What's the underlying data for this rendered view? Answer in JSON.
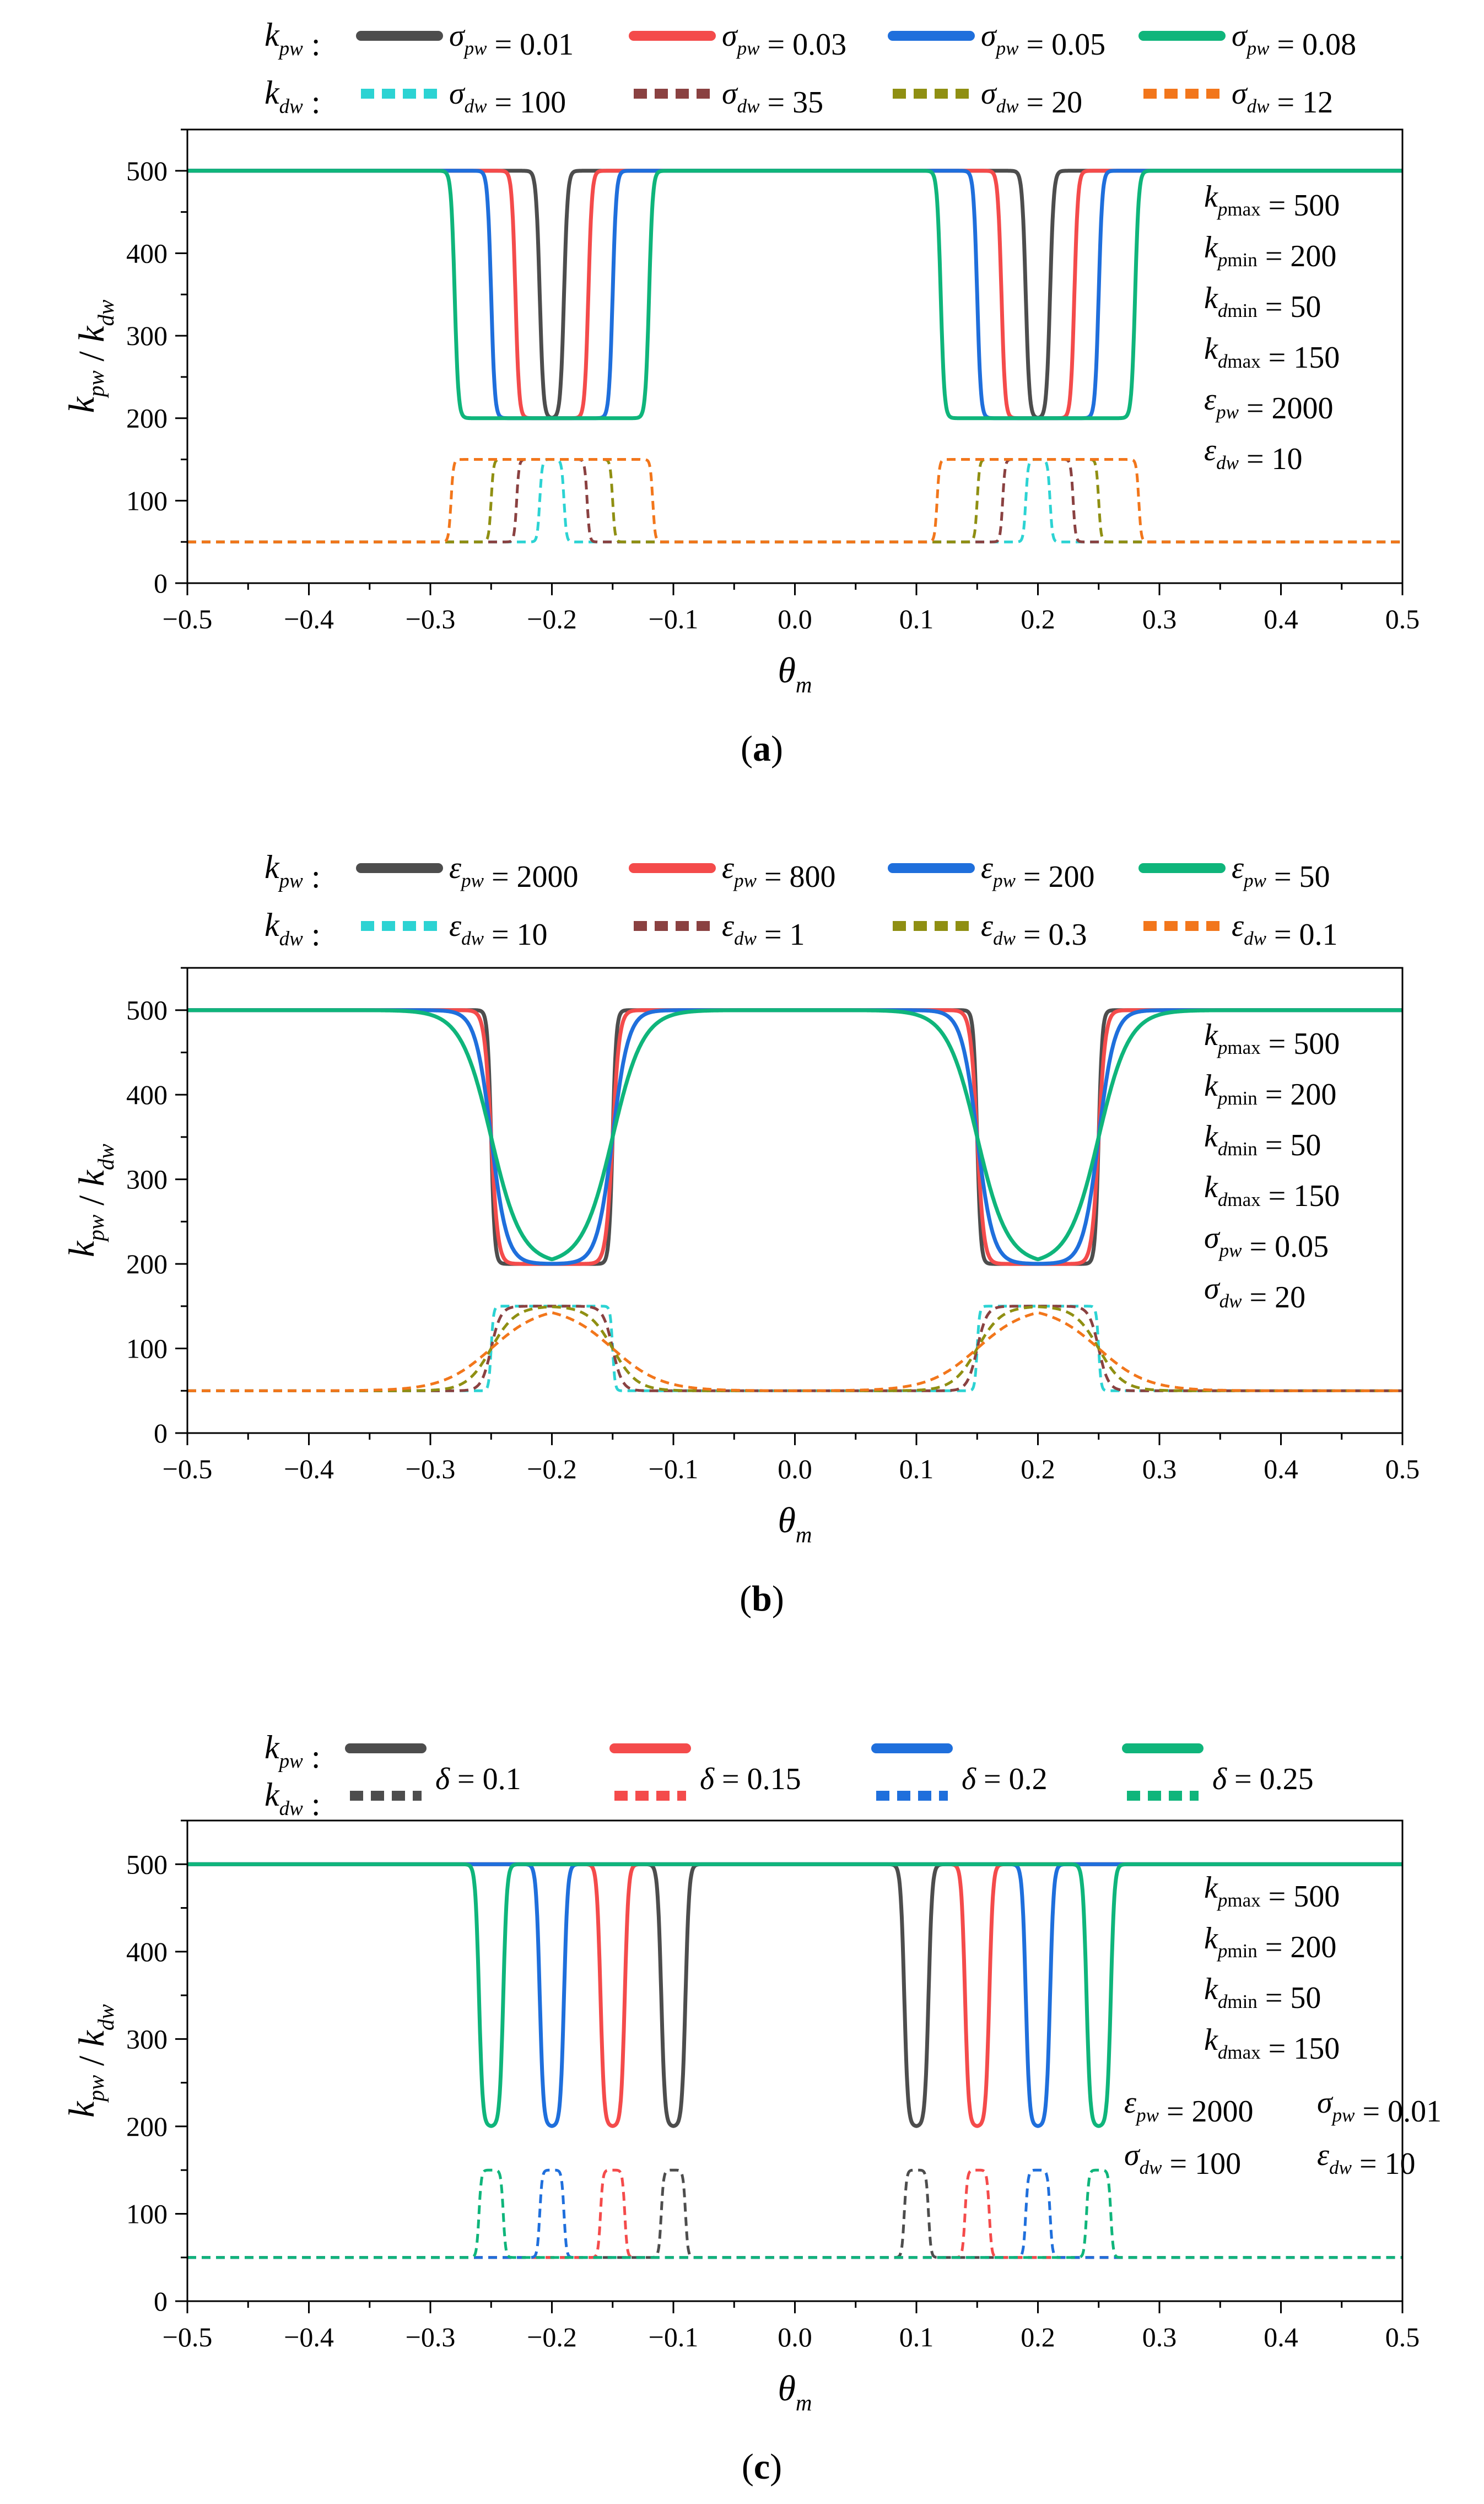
{
  "colors": {
    "black": "#4d4d4d",
    "red": "#f44b4b",
    "blue": "#1f6fdc",
    "green": "#0fb57b",
    "cyan": "#2cd3d3",
    "brown": "#8a4141",
    "olive": "#8f8f12",
    "orange": "#f2761b"
  },
  "chart_data": [
    {
      "type": "line",
      "panel_label": "(a)",
      "xlabel": "θm",
      "ylabel": "kpw / kdw",
      "xlim": [
        -0.5,
        0.5
      ],
      "ylim": [
        0,
        550
      ],
      "xticks": [
        "−0.5",
        "−0.4",
        "−0.3",
        "−0.2",
        "−0.1",
        "0.0",
        "0.1",
        "0.2",
        "0.3",
        "0.4",
        "0.5"
      ],
      "yticks": [
        "0",
        "100",
        "200",
        "300",
        "400",
        "500"
      ],
      "legend": {
        "row1_label": "kpw :",
        "row2_label": "kdw :",
        "row1": [
          "σpw = 0.01",
          "σpw = 0.03",
          "σpw = 0.05",
          "σpw = 0.08"
        ],
        "row2": [
          "σdw = 100",
          "σdw = 35",
          "σdw = 20",
          "σdw = 12"
        ]
      },
      "params": [
        "kpmax = 500",
        "kpmin = 200",
        "kdmin = 50",
        "kdmax = 150",
        "εpw = 2000",
        "εdw = 10"
      ],
      "series": [
        {
          "name": "σpw = 0.01",
          "kind": "kpw",
          "style": "solid",
          "color": "black",
          "centers": [
            -0.2,
            0.2
          ],
          "half_width": 0.01,
          "base": 500,
          "dip": 200,
          "edge": 0.0015
        },
        {
          "name": "σpw = 0.03",
          "kind": "kpw",
          "style": "solid",
          "color": "red",
          "centers": [
            -0.2,
            0.2
          ],
          "half_width": 0.03,
          "base": 500,
          "dip": 200,
          "edge": 0.0015
        },
        {
          "name": "σpw = 0.05",
          "kind": "kpw",
          "style": "solid",
          "color": "blue",
          "centers": [
            -0.2,
            0.2
          ],
          "half_width": 0.05,
          "base": 500,
          "dip": 200,
          "edge": 0.0015
        },
        {
          "name": "σpw = 0.08",
          "kind": "kpw",
          "style": "solid",
          "color": "green",
          "centers": [
            -0.2,
            0.2
          ],
          "half_width": 0.08,
          "base": 500,
          "dip": 200,
          "edge": 0.0015
        },
        {
          "name": "σdw = 100",
          "kind": "kdw",
          "style": "dashed",
          "color": "cyan",
          "centers": [
            -0.2,
            0.2
          ],
          "half_width": 0.01,
          "base": 50,
          "peak": 150,
          "edge": 0.001
        },
        {
          "name": "σdw = 35",
          "kind": "kdw",
          "style": "dashed",
          "color": "brown",
          "centers": [
            -0.2,
            0.2
          ],
          "half_width": 0.029,
          "base": 50,
          "peak": 150,
          "edge": 0.001
        },
        {
          "name": "σdw = 20",
          "kind": "kdw",
          "style": "dashed",
          "color": "olive",
          "centers": [
            -0.2,
            0.2
          ],
          "half_width": 0.05,
          "base": 50,
          "peak": 150,
          "edge": 0.001
        },
        {
          "name": "σdw = 12",
          "kind": "kdw",
          "style": "dashed",
          "color": "orange",
          "centers": [
            -0.2,
            0.2
          ],
          "half_width": 0.083,
          "base": 50,
          "peak": 150,
          "edge": 0.001
        }
      ]
    },
    {
      "type": "line",
      "panel_label": "(b)",
      "xlabel": "θm",
      "ylabel": "kpw / kdw",
      "xlim": [
        -0.5,
        0.5
      ],
      "ylim": [
        0,
        550
      ],
      "xticks": [
        "−0.5",
        "−0.4",
        "−0.3",
        "−0.2",
        "−0.1",
        "0.0",
        "0.1",
        "0.2",
        "0.3",
        "0.4",
        "0.5"
      ],
      "yticks": [
        "0",
        "100",
        "200",
        "300",
        "400",
        "500"
      ],
      "legend": {
        "row1_label": "kpw :",
        "row2_label": "kdw :",
        "row1": [
          "εpw = 2000",
          "εpw = 800",
          "εpw = 200",
          "εpw = 50"
        ],
        "row2": [
          "εdw = 10",
          "εdw = 1",
          "εdw = 0.3",
          "εdw = 0.1"
        ]
      },
      "params": [
        "kpmax = 500",
        "kpmin = 200",
        "kdmin = 50",
        "kdmax = 150",
        "σpw = 0.05",
        "σdw = 20"
      ],
      "series": [
        {
          "name": "εpw = 2000",
          "kind": "kpw",
          "style": "solid",
          "color": "black",
          "centers": [
            -0.2,
            0.2
          ],
          "half_width": 0.05,
          "base": 500,
          "dip": 200,
          "edge": 0.0015
        },
        {
          "name": "εpw = 800",
          "kind": "kpw",
          "style": "solid",
          "color": "red",
          "centers": [
            -0.2,
            0.2
          ],
          "half_width": 0.05,
          "base": 500,
          "dip": 200,
          "edge": 0.0028
        },
        {
          "name": "εpw = 200",
          "kind": "kpw",
          "style": "solid",
          "color": "blue",
          "centers": [
            -0.2,
            0.2
          ],
          "half_width": 0.05,
          "base": 500,
          "dip": 200,
          "edge": 0.0065
        },
        {
          "name": "εpw = 50",
          "kind": "kpw",
          "style": "solid",
          "color": "green",
          "centers": [
            -0.2,
            0.2
          ],
          "half_width": 0.05,
          "base": 500,
          "dip": 200,
          "edge": 0.0125
        },
        {
          "name": "εdw = 10",
          "kind": "kdw",
          "style": "dashed",
          "color": "cyan",
          "centers": [
            -0.2,
            0.2
          ],
          "half_width": 0.05,
          "base": 50,
          "peak": 150,
          "edge": 0.001
        },
        {
          "name": "εdw = 1",
          "kind": "kdw",
          "style": "dashed",
          "color": "brown",
          "centers": [
            -0.2,
            0.2
          ],
          "half_width": 0.05,
          "base": 50,
          "peak": 150,
          "edge": 0.004
        },
        {
          "name": "εdw = 0.3",
          "kind": "kdw",
          "style": "dashed",
          "color": "olive",
          "centers": [
            -0.2,
            0.2
          ],
          "half_width": 0.05,
          "base": 50,
          "peak": 150,
          "edge": 0.01
        },
        {
          "name": "εdw = 0.1",
          "kind": "kdw",
          "style": "dashed",
          "color": "orange",
          "centers": [
            -0.2,
            0.2
          ],
          "half_width": 0.05,
          "base": 50,
          "peak": 150,
          "edge": 0.02
        }
      ]
    },
    {
      "type": "line",
      "panel_label": "(c)",
      "xlabel": "θm",
      "ylabel": "kpw / kdw",
      "xlim": [
        -0.5,
        0.5
      ],
      "ylim": [
        0,
        550
      ],
      "xticks": [
        "−0.5",
        "−0.4",
        "−0.3",
        "−0.2",
        "−0.1",
        "0.0",
        "0.1",
        "0.2",
        "0.3",
        "0.4",
        "0.5"
      ],
      "yticks": [
        "0",
        "100",
        "200",
        "300",
        "400",
        "500"
      ],
      "legend": {
        "row1_label": "kpw :",
        "row2_label": "kdw :",
        "entries": [
          "δ = 0.1",
          "δ = 0.15",
          "δ = 0.2",
          "δ = 0.25"
        ]
      },
      "params": [
        "kpmax = 500",
        "kpmin = 200",
        "kdmin = 50",
        "kdmax = 150"
      ],
      "params_extra": [
        "εpw = 2000",
        "σpw = 0.01",
        "σdw = 100",
        "εdw = 10"
      ],
      "series": [
        {
          "name": "δ = 0.1",
          "kind": "kpw",
          "style": "solid",
          "color": "black",
          "centers": [
            -0.1,
            0.1
          ],
          "half_width": 0.01,
          "base": 500,
          "dip": 200,
          "edge": 0.0015
        },
        {
          "name": "δ = 0.15",
          "kind": "kpw",
          "style": "solid",
          "color": "red",
          "centers": [
            -0.15,
            0.15
          ],
          "half_width": 0.01,
          "base": 500,
          "dip": 200,
          "edge": 0.0015
        },
        {
          "name": "δ = 0.2",
          "kind": "kpw",
          "style": "solid",
          "color": "blue",
          "centers": [
            -0.2,
            0.2
          ],
          "half_width": 0.01,
          "base": 500,
          "dip": 200,
          "edge": 0.0015
        },
        {
          "name": "δ = 0.25",
          "kind": "kpw",
          "style": "solid",
          "color": "green",
          "centers": [
            -0.25,
            0.25
          ],
          "half_width": 0.01,
          "base": 500,
          "dip": 200,
          "edge": 0.0015
        },
        {
          "name": "δ = 0.1",
          "kind": "kdw",
          "style": "dashed",
          "color": "black",
          "centers": [
            -0.1,
            0.1
          ],
          "half_width": 0.01,
          "base": 50,
          "peak": 150,
          "edge": 0.001
        },
        {
          "name": "δ = 0.15",
          "kind": "kdw",
          "style": "dashed",
          "color": "red",
          "centers": [
            -0.15,
            0.15
          ],
          "half_width": 0.01,
          "base": 50,
          "peak": 150,
          "edge": 0.001
        },
        {
          "name": "δ = 0.2",
          "kind": "kdw",
          "style": "dashed",
          "color": "blue",
          "centers": [
            -0.2,
            0.2
          ],
          "half_width": 0.01,
          "base": 50,
          "peak": 150,
          "edge": 0.001
        },
        {
          "name": "δ = 0.25",
          "kind": "kdw",
          "style": "dashed",
          "color": "green",
          "centers": [
            -0.25,
            0.25
          ],
          "half_width": 0.01,
          "base": 50,
          "peak": 150,
          "edge": 0.001
        }
      ]
    }
  ]
}
